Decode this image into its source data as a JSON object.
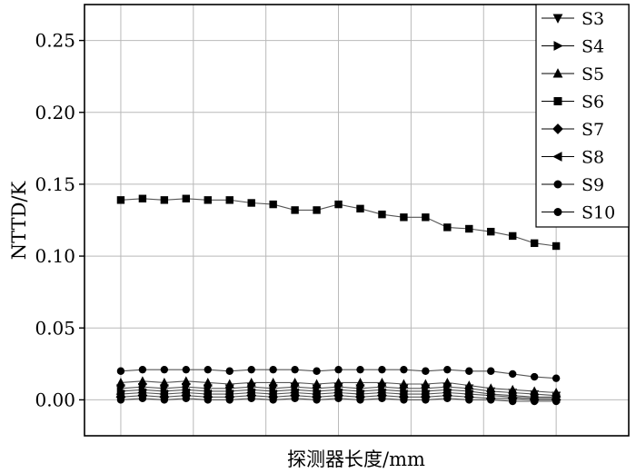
{
  "chart_data": {
    "type": "line",
    "title": "",
    "xlabel": "探测器长度/mm",
    "ylabel": "NTTD/K",
    "ylim": [
      -0.025,
      0.275
    ],
    "yticks": [
      0.0,
      0.05,
      0.1,
      0.15,
      0.2,
      0.25
    ],
    "ytick_labels": [
      "0.00",
      "0.05",
      "0.10",
      "0.15",
      "0.20",
      "0.25"
    ],
    "xlim": [
      0,
      37.5
    ],
    "x_gridlines": [
      2.5,
      7.5,
      12.5,
      17.5,
      22.5,
      27.5,
      32.5
    ],
    "x": [
      2.5,
      4,
      5.5,
      7,
      8.5,
      10,
      11.5,
      13,
      14.5,
      16,
      17.5,
      19,
      20.5,
      22,
      23.5,
      25,
      26.5,
      28,
      29.5,
      31,
      32.5
    ],
    "grid": true,
    "legend_position": "top-right",
    "series": [
      {
        "name": "S3",
        "marker": "triangle-down",
        "values": [
          0.008,
          0.009,
          0.008,
          0.009,
          0.008,
          0.008,
          0.009,
          0.008,
          0.009,
          0.008,
          0.009,
          0.008,
          0.009,
          0.008,
          0.008,
          0.009,
          0.008,
          0.006,
          0.005,
          0.004,
          0.003
        ]
      },
      {
        "name": "S4",
        "marker": "triangle-right",
        "values": [
          0.006,
          0.007,
          0.006,
          0.007,
          0.006,
          0.006,
          0.007,
          0.006,
          0.007,
          0.006,
          0.007,
          0.006,
          0.007,
          0.006,
          0.006,
          0.007,
          0.006,
          0.004,
          0.003,
          0.002,
          0.002
        ]
      },
      {
        "name": "S5",
        "marker": "triangle-up",
        "values": [
          0.012,
          0.013,
          0.012,
          0.013,
          0.012,
          0.011,
          0.012,
          0.012,
          0.012,
          0.011,
          0.012,
          0.012,
          0.012,
          0.011,
          0.011,
          0.012,
          0.01,
          0.008,
          0.007,
          0.006,
          0.005
        ]
      },
      {
        "name": "S6",
        "marker": "square",
        "values": [
          0.139,
          0.14,
          0.139,
          0.14,
          0.139,
          0.139,
          0.137,
          0.136,
          0.132,
          0.132,
          0.136,
          0.133,
          0.129,
          0.127,
          0.127,
          0.12,
          0.119,
          0.117,
          0.114,
          0.109,
          0.107
        ]
      },
      {
        "name": "S7",
        "marker": "diamond",
        "values": [
          0.002,
          0.003,
          0.002,
          0.003,
          0.002,
          0.002,
          0.003,
          0.002,
          0.003,
          0.002,
          0.003,
          0.002,
          0.003,
          0.002,
          0.002,
          0.003,
          0.002,
          0.001,
          0.001,
          0.0,
          0.0
        ]
      },
      {
        "name": "S8",
        "marker": "triangle-left",
        "values": [
          0.004,
          0.005,
          0.004,
          0.005,
          0.004,
          0.004,
          0.005,
          0.004,
          0.005,
          0.004,
          0.005,
          0.004,
          0.005,
          0.004,
          0.004,
          0.005,
          0.004,
          0.003,
          0.002,
          0.001,
          0.001
        ]
      },
      {
        "name": "S9",
        "marker": "circle",
        "values": [
          0.0,
          0.001,
          0.0,
          0.001,
          0.0,
          0.0,
          0.001,
          0.0,
          0.001,
          0.0,
          0.001,
          0.0,
          0.001,
          0.0,
          0.0,
          0.001,
          0.0,
          0.0,
          -0.001,
          -0.001,
          -0.001
        ]
      },
      {
        "name": "S10",
        "marker": "circle",
        "values": [
          0.02,
          0.021,
          0.021,
          0.021,
          0.021,
          0.02,
          0.021,
          0.021,
          0.021,
          0.02,
          0.021,
          0.021,
          0.021,
          0.021,
          0.02,
          0.021,
          0.02,
          0.02,
          0.018,
          0.016,
          0.015
        ]
      }
    ]
  }
}
